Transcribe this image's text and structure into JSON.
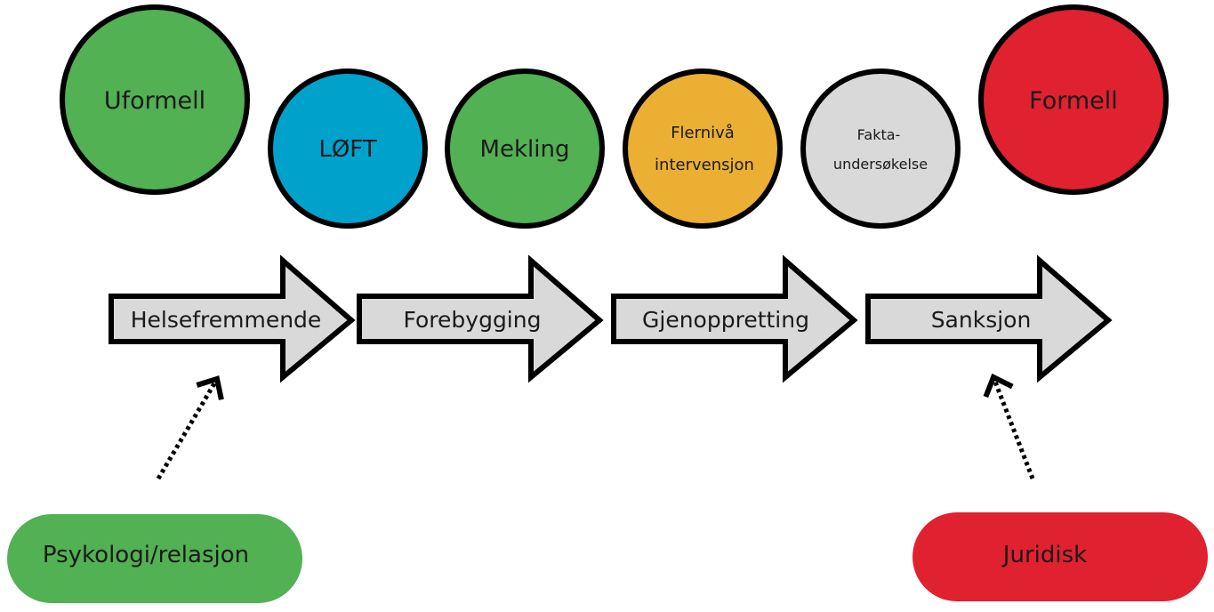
{
  "circles": {
    "uformell": "Uformell",
    "loft": "LØFT",
    "mekling": "Mekling",
    "flerniva_line1": "Flernivå",
    "flerniva_line2": "intervensjon",
    "fakta_line1": "Fakta-",
    "fakta_line2": "undersøkelse",
    "formell": "Formell"
  },
  "arrows": {
    "helsefremmende": "Helsefremmende",
    "forebygging": "Forebygging",
    "gjenoppretting": "Gjenoppretting",
    "sanksjon": "Sanksjon"
  },
  "pills": {
    "psykologi": "Psykologi/relasjon",
    "juridisk": "Juridisk"
  },
  "colors": {
    "green": "#52b153",
    "blue": "#00a2cc",
    "orange": "#eaaf33",
    "grey": "#d9d9d9",
    "red": "#e0212f",
    "outline": "#000000"
  }
}
